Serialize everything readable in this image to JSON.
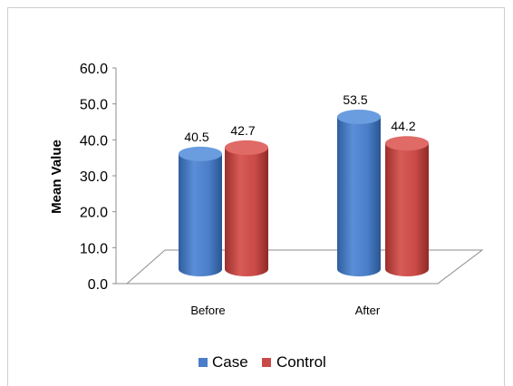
{
  "chart_data": {
    "type": "bar",
    "title": "",
    "xlabel": "",
    "ylabel": "Mean Value",
    "categories": [
      "Before",
      "After"
    ],
    "series": [
      {
        "name": "Case",
        "values": [
          40.5,
          53.5
        ],
        "color": "#4a7ec9"
      },
      {
        "name": "Control",
        "values": [
          42.7,
          44.2
        ],
        "color": "#c94a47"
      }
    ],
    "ylim": [
      0,
      60
    ],
    "yticks": [
      "0.0",
      "10.0",
      "20.0",
      "30.0",
      "40.0",
      "50.0",
      "60.0"
    ],
    "grid": false,
    "legend_position": "bottom",
    "style": "3d-cylinder"
  }
}
